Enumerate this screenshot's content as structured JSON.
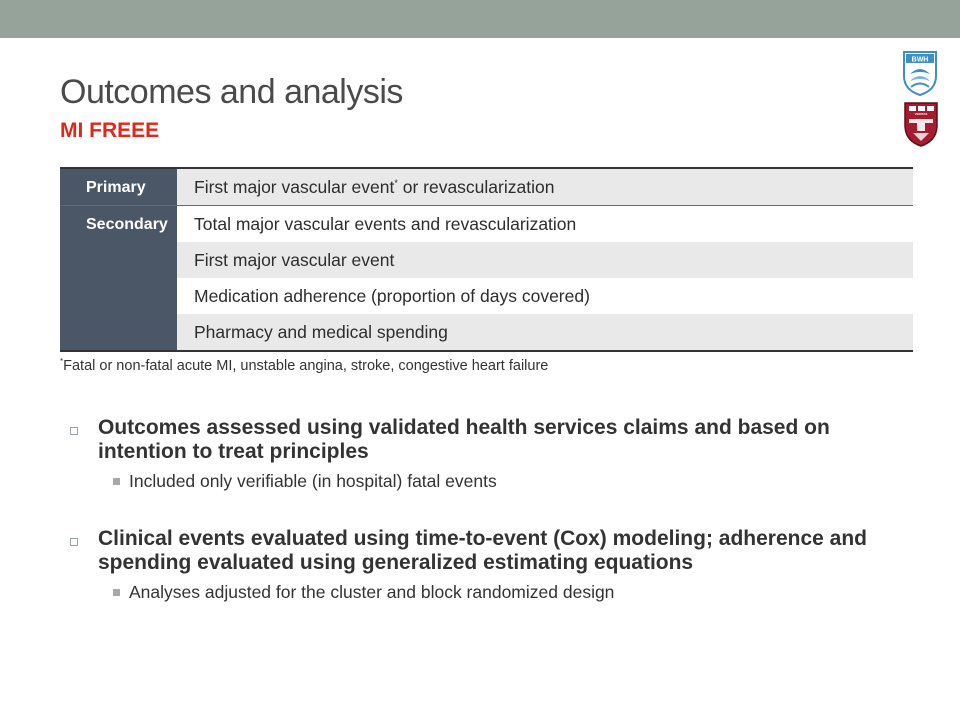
{
  "slide": {
    "title": "Outcomes and analysis",
    "subtitle": "MI FREEE"
  },
  "logos": {
    "top": "BWH",
    "bottom": "VERITAS"
  },
  "table": {
    "rows": [
      {
        "label": "Primary",
        "text": "First major vascular event",
        "marker": "*",
        "text_after": " or revascularization"
      },
      {
        "label": "Secondary",
        "text": "Total major vascular events and revascularization"
      },
      {
        "text": "First major vascular event"
      },
      {
        "text": "Medication adherence (proportion of days covered)"
      },
      {
        "text": "Pharmacy and medical spending"
      }
    ]
  },
  "footnote": {
    "marker": "*",
    "text": "Fatal or non-fatal acute MI, unstable angina, stroke, congestive heart failure"
  },
  "bullets": [
    {
      "text": "Outcomes assessed using validated health services claims and based on intention to treat principles",
      "sub": [
        "Included only verifiable (in hospital) fatal events"
      ]
    },
    {
      "text": "Clinical events evaluated using time-to-event (Cox) modeling; adherence and spending evaluated using generalized estimating equations",
      "sub": [
        "Analyses adjusted for the cluster and block randomized design"
      ]
    }
  ],
  "colors": {
    "top_bar": "#96a39a",
    "title": "#4a4a4a",
    "subtitle": "#e0271b",
    "label_column": "#4b5767",
    "row_shade": "#e9e9e9",
    "bwh_blue": "#3f8fc1",
    "harvard_crimson": "#a51c30"
  },
  "icons": {
    "level1_bullet": "hollow-square",
    "level2_bullet": "filled-square"
  }
}
